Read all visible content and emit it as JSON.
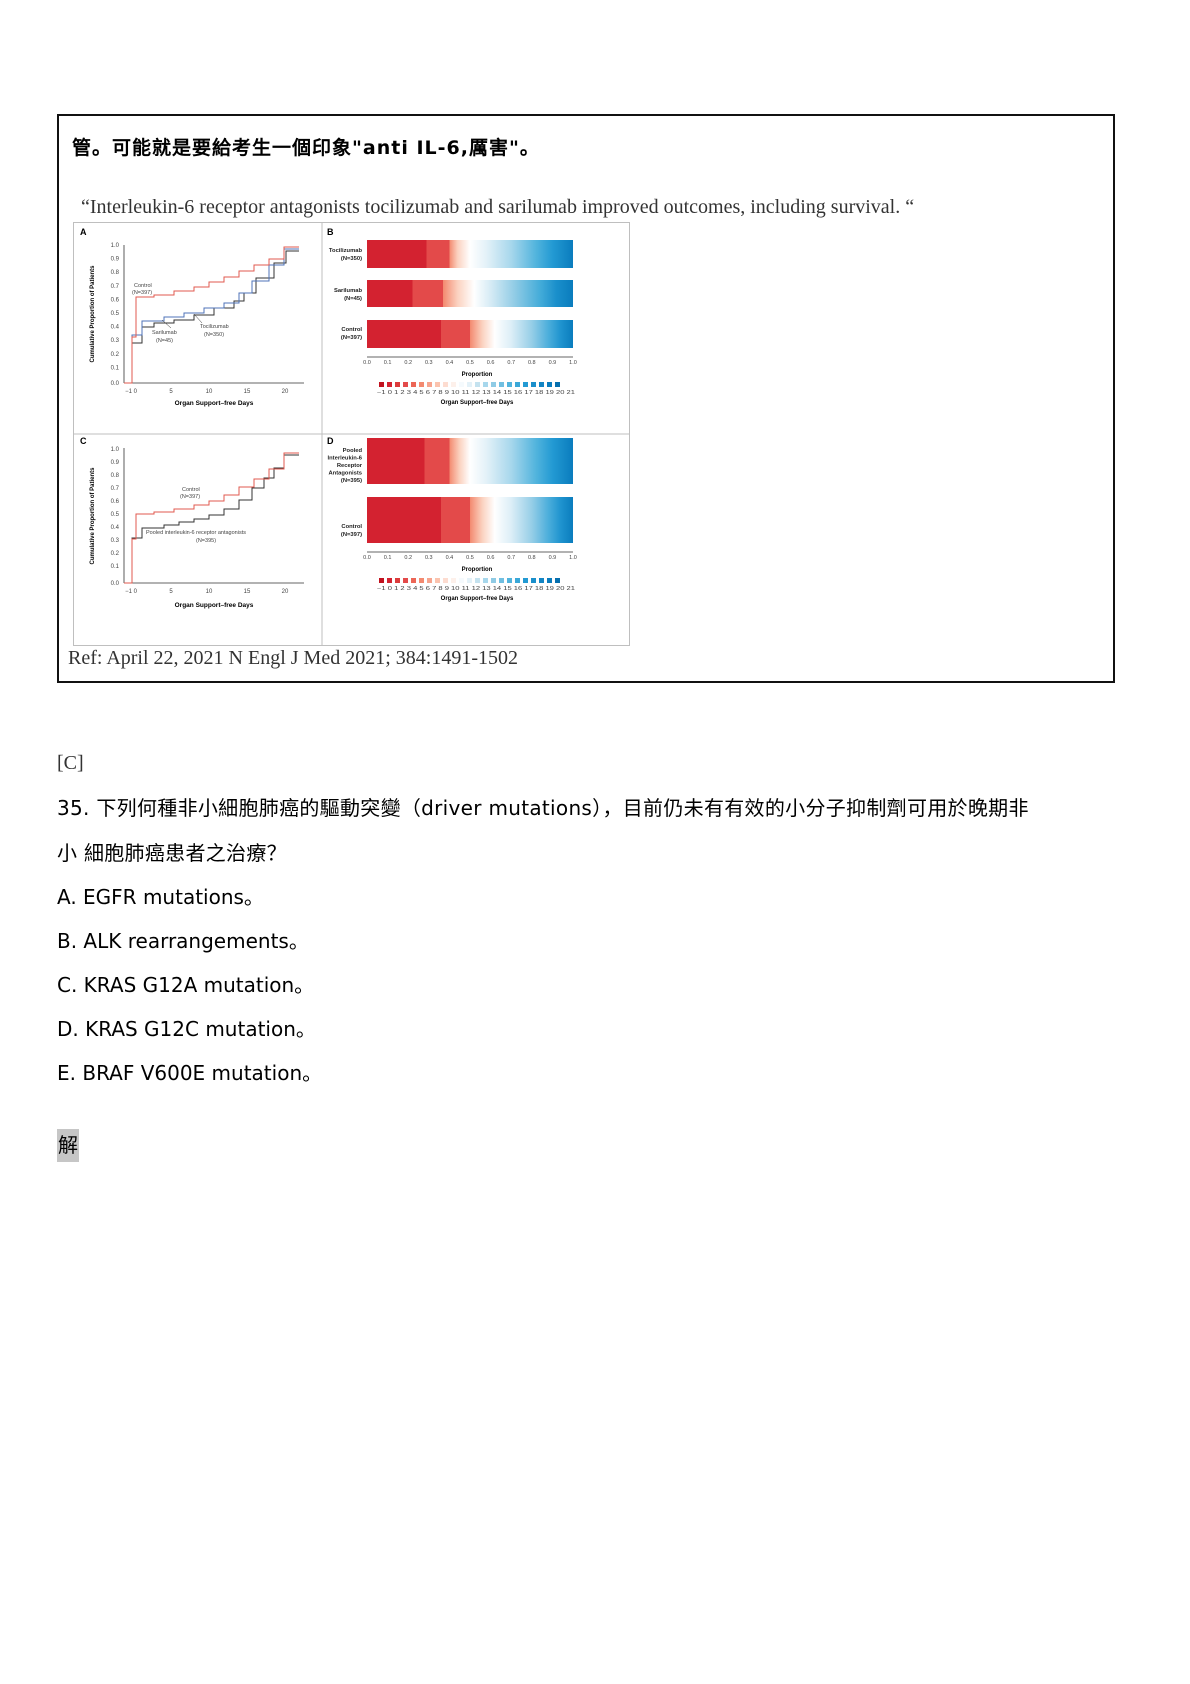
{
  "box": {
    "heading": "管。可能就是要給考生一個印象\"anti IL-6,厲害\"。",
    "quote": "“Interleukin-6 receptor antagonists tocilizumab and sarilumab improved outcomes, including survival.  “",
    "ref": "Ref:  April 22, 2021 N Engl J Med 2021; 384:1491-1502"
  },
  "figure": {
    "panels": {
      "a": "A",
      "b": "B",
      "c": "C",
      "d": "D"
    },
    "y_axis_title": "Cumulative Proportion of Patients",
    "x_axis_title": "Organ Support–free Days",
    "bar_x_title": "Proportion",
    "legend_title": "Organ Support–free Days",
    "y_ticks": [
      "1.0",
      "0.9",
      "0.8",
      "0.7",
      "0.6",
      "0.5",
      "0.4",
      "0.3",
      "0.2",
      "0.1",
      "0.0"
    ],
    "x_ticks": [
      "−1 0",
      "5",
      "10",
      "15",
      "20"
    ],
    "prop_ticks": [
      "0.0",
      "0.1",
      "0.2",
      "0.3",
      "0.4",
      "0.5",
      "0.6",
      "0.7",
      "0.8",
      "0.9",
      "1.0"
    ],
    "legend_numbers": "−1  0  1  2  3  4  5  6  7  8  9  10 11 12 13 14 15 16 17 18 19 20 21",
    "panel_a_labels": {
      "control": "Control",
      "control_n": "(N=397)",
      "sarilumab": "Sarilumab",
      "sarilumab_n": "(N=45)",
      "tocilizumab": "Tocilizumab",
      "tocilizumab_n": "(N=350)"
    },
    "panel_c_labels": {
      "control": "Control",
      "control_n": "(N=397)",
      "pooled": "Pooled interleukin-6 receptor antagonists",
      "pooled_n": "(N=395)"
    },
    "bar_labels_b": [
      {
        "name": "Tocilizumab",
        "n": "(N=350)"
      },
      {
        "name": "Sarilumab",
        "n": "(N=45)"
      },
      {
        "name": "Control",
        "n": "(N=397)"
      }
    ],
    "bar_labels_d": [
      {
        "l1": "Pooled",
        "l2": "Interleukin-6",
        "l3": "Receptor",
        "l4": "Antagonists",
        "n": "(N=395)"
      },
      {
        "l1": "Control",
        "n": "(N=397)"
      }
    ],
    "colors": {
      "control": "#e05a4f",
      "tocilizumab": "#4f73b8",
      "sarilumab": "#333333",
      "pooled": "#333333",
      "red_dark": "#d32230",
      "red_mid": "#e34a4a",
      "red_light": "#f6a48e",
      "blue_light": "#c4e2ef",
      "blue_mid": "#52b4dd",
      "blue_dark": "#0a7cbd"
    }
  },
  "question": {
    "answer_tag": "[C]",
    "line1": "35. 下列何種非小細胞肺癌的驅動突變（driver mutations），目前仍未有有效的小分子抑制劑可用於晚期非",
    "line2": "小 細胞肺癌患者之治療？",
    "options": [
      "A. EGFR mutations。",
      "B. ALK rearrangements。",
      "C. KRAS G12A mutation。",
      "D. KRAS G12C mutation。",
      "E. BRAF V600E mutation。"
    ],
    "solve_label": "解"
  }
}
